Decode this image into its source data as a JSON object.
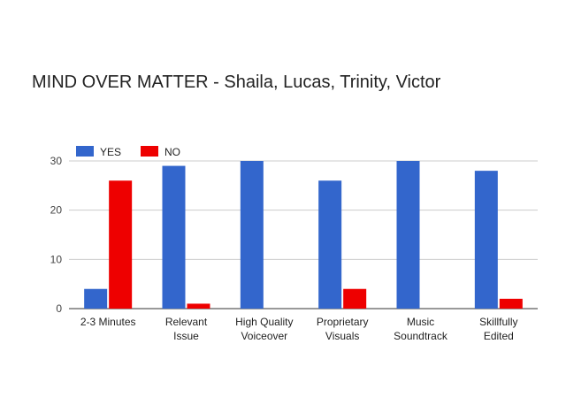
{
  "chart_data": {
    "type": "bar",
    "title": "MIND OVER MATTER - Shaila, Lucas, Trinity, Victor",
    "xlabel": "",
    "ylabel": "",
    "categories": [
      [
        "2-3 Minutes"
      ],
      [
        "Relevant",
        "Issue"
      ],
      [
        "High Quality",
        "Voiceover"
      ],
      [
        "Proprietary",
        "Visuals"
      ],
      [
        "Music",
        "Soundtrack"
      ],
      [
        "Skillfully",
        "Edited"
      ]
    ],
    "series": [
      {
        "name": "YES",
        "color": "#3366cc",
        "values": [
          4,
          29,
          30,
          26,
          30,
          28
        ]
      },
      {
        "name": "NO",
        "color": "#ee0000",
        "values": [
          26,
          1,
          0,
          4,
          0,
          2
        ]
      }
    ],
    "ylim": [
      0,
      30
    ],
    "yticks": [
      0,
      10,
      20,
      30
    ],
    "grid": true,
    "legend_position": "top-left"
  }
}
